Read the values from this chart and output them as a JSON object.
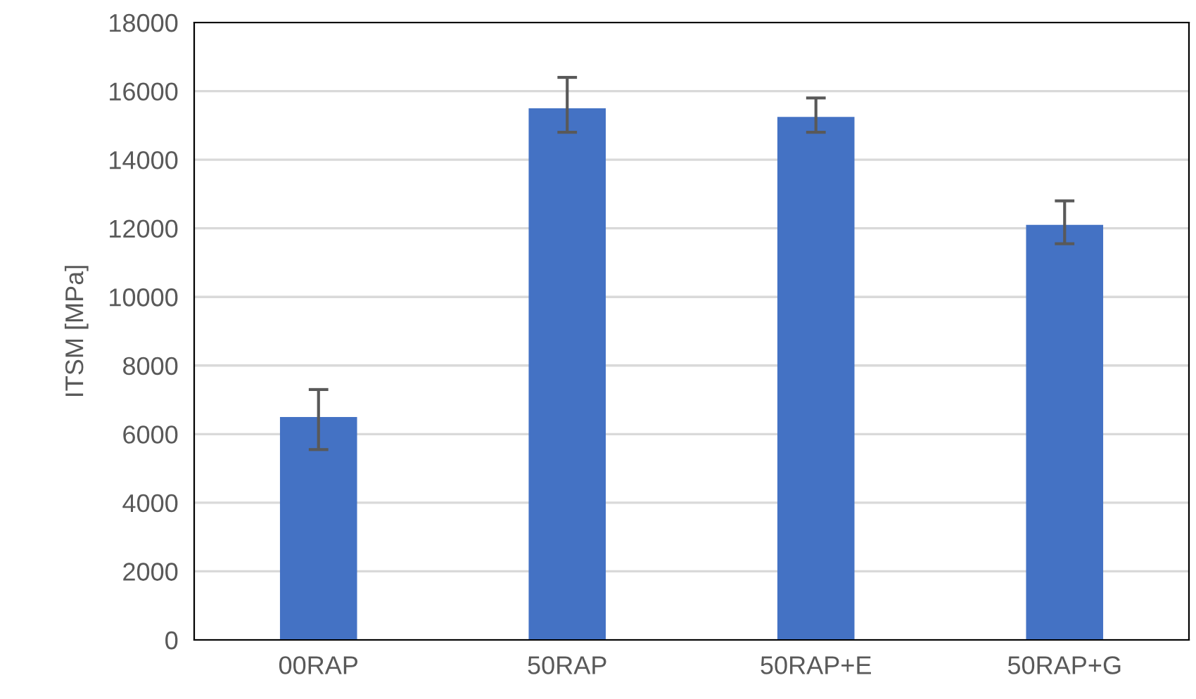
{
  "chart_data": {
    "type": "bar",
    "ylabel": "ITSM [MPa]",
    "categories": [
      "00RAP",
      "50RAP",
      "50RAP+E",
      "50RAP+G"
    ],
    "values": [
      6500,
      15500,
      15250,
      12100
    ],
    "errors": [
      [
        5550,
        7300
      ],
      [
        14800,
        16400
      ],
      [
        14800,
        15800
      ],
      [
        11550,
        12800
      ]
    ],
    "color": "#4472c4",
    "ylim": [
      0,
      18000
    ],
    "yticks": [
      0,
      2000,
      4000,
      6000,
      8000,
      10000,
      12000,
      14000,
      16000,
      18000
    ],
    "grid": "y",
    "legend": false
  }
}
